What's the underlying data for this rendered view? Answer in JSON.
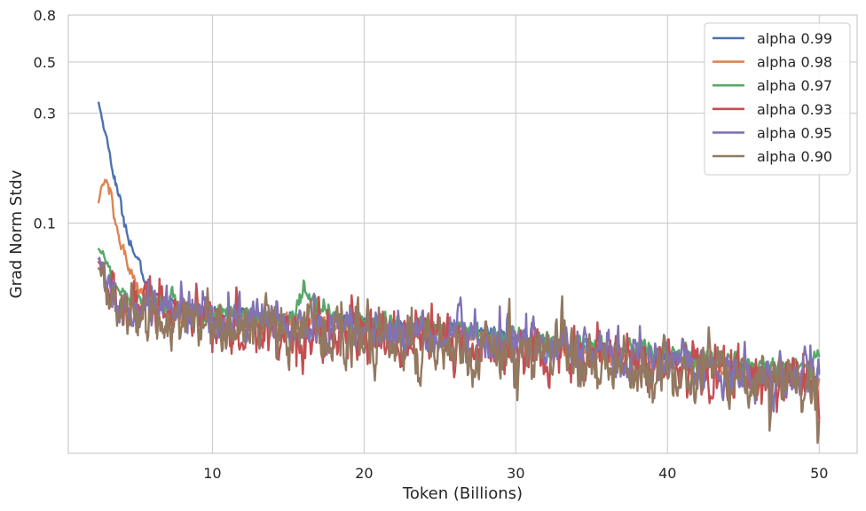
{
  "chart_data": {
    "type": "line",
    "xlabel": "Token (Billions)",
    "ylabel": "Grad Norm Stdv",
    "x_range": [
      0.5,
      52.5
    ],
    "y_range": [
      0.01,
      0.8
    ],
    "y_scale": "log",
    "x_ticks": [
      10,
      20,
      30,
      40,
      50
    ],
    "x_tick_labels": [
      "10",
      "20",
      "30",
      "40",
      "50"
    ],
    "y_ticks": [
      0.1,
      0.3,
      0.5,
      0.8
    ],
    "y_tick_labels": [
      "0.1",
      "0.3",
      "0.5",
      "0.8"
    ],
    "grid": true,
    "legend_position": "top-right",
    "series_colors": [
      "#4c72b0",
      "#dd8452",
      "#55a868",
      "#c44e52",
      "#8172b3",
      "#937860"
    ],
    "series": [
      {
        "name": "alpha 0.99",
        "x": [
          2.5,
          3,
          3.5,
          4,
          4.5,
          5,
          5.5,
          6,
          7,
          8,
          9,
          10,
          12,
          14,
          16,
          18,
          20,
          22,
          24,
          26,
          28,
          30,
          32,
          34,
          36,
          38,
          40,
          42,
          44,
          46,
          48,
          50
        ],
        "values": [
          0.333,
          0.236,
          0.163,
          0.114,
          0.087,
          0.069,
          0.058,
          0.051,
          0.046,
          0.044,
          0.042,
          0.041,
          0.04,
          0.039,
          0.038,
          0.038,
          0.037,
          0.036,
          0.035,
          0.034,
          0.033,
          0.032,
          0.031,
          0.029,
          0.028,
          0.027,
          0.026,
          0.025,
          0.024,
          0.023,
          0.022,
          0.022
        ]
      },
      {
        "name": "alpha 0.98",
        "x": [
          2.5,
          2.7,
          3,
          3.3,
          3.6,
          4,
          4.5,
          5,
          5.5,
          6,
          7,
          8,
          9,
          10,
          12,
          14,
          16,
          18,
          20,
          22,
          24,
          26,
          28,
          30,
          32,
          34,
          36,
          38,
          40,
          42,
          44,
          46,
          48,
          50
        ],
        "values": [
          0.122,
          0.148,
          0.151,
          0.129,
          0.101,
          0.079,
          0.064,
          0.055,
          0.05,
          0.047,
          0.044,
          0.042,
          0.041,
          0.04,
          0.039,
          0.038,
          0.037,
          0.036,
          0.035,
          0.034,
          0.033,
          0.032,
          0.031,
          0.03,
          0.029,
          0.028,
          0.027,
          0.026,
          0.025,
          0.024,
          0.023,
          0.022,
          0.021,
          0.021
        ]
      },
      {
        "name": "alpha 0.97",
        "x": [
          2.5,
          2.8,
          3.2,
          3.6,
          4,
          4.5,
          5,
          5.5,
          6,
          7,
          8,
          9,
          10,
          12,
          14,
          15.5,
          16,
          17,
          18,
          20,
          22,
          24,
          26,
          28,
          30,
          32,
          34,
          36,
          38,
          40,
          42,
          44,
          46,
          48,
          49.5,
          50
        ],
        "values": [
          0.078,
          0.074,
          0.061,
          0.054,
          0.051,
          0.049,
          0.048,
          0.047,
          0.046,
          0.044,
          0.042,
          0.041,
          0.04,
          0.039,
          0.038,
          0.04,
          0.052,
          0.043,
          0.039,
          0.037,
          0.036,
          0.035,
          0.034,
          0.033,
          0.032,
          0.031,
          0.03,
          0.029,
          0.028,
          0.027,
          0.026,
          0.025,
          0.024,
          0.023,
          0.024,
          0.026
        ]
      },
      {
        "name": "alpha 0.93",
        "x": [
          2.5,
          3,
          3.5,
          4,
          5,
          6,
          7,
          8,
          9,
          10,
          12,
          14,
          16,
          18,
          20,
          22,
          24,
          26,
          28,
          30,
          32,
          34,
          36,
          38,
          40,
          42,
          44,
          46,
          48,
          50
        ],
        "values": [
          0.067,
          0.052,
          0.047,
          0.044,
          0.042,
          0.04,
          0.039,
          0.038,
          0.037,
          0.036,
          0.035,
          0.034,
          0.033,
          0.033,
          0.032,
          0.031,
          0.031,
          0.03,
          0.029,
          0.028,
          0.028,
          0.027,
          0.026,
          0.025,
          0.024,
          0.023,
          0.022,
          0.021,
          0.021,
          0.02
        ]
      },
      {
        "name": "alpha 0.95",
        "x": [
          2.5,
          3,
          3.5,
          4,
          5,
          6,
          7,
          8,
          9,
          10,
          12,
          14,
          16,
          18,
          20,
          22,
          24,
          26,
          28,
          30,
          32,
          34,
          36,
          38,
          40,
          42,
          44,
          46,
          48,
          50
        ],
        "values": [
          0.071,
          0.058,
          0.05,
          0.047,
          0.044,
          0.043,
          0.042,
          0.041,
          0.04,
          0.039,
          0.038,
          0.037,
          0.036,
          0.035,
          0.034,
          0.033,
          0.033,
          0.032,
          0.031,
          0.03,
          0.029,
          0.028,
          0.027,
          0.026,
          0.025,
          0.024,
          0.023,
          0.022,
          0.021,
          0.021
        ]
      },
      {
        "name": "alpha 0.90",
        "x": [
          2.5,
          3,
          3.5,
          4,
          5,
          6,
          7,
          8,
          9,
          10,
          12,
          14,
          16,
          18,
          20,
          22,
          24,
          26,
          28,
          30,
          32,
          34,
          36,
          38,
          40,
          42,
          44,
          46,
          48,
          50
        ],
        "values": [
          0.064,
          0.049,
          0.045,
          0.043,
          0.041,
          0.039,
          0.038,
          0.037,
          0.036,
          0.035,
          0.034,
          0.034,
          0.033,
          0.032,
          0.031,
          0.031,
          0.03,
          0.029,
          0.029,
          0.028,
          0.027,
          0.026,
          0.025,
          0.024,
          0.023,
          0.022,
          0.022,
          0.021,
          0.02,
          0.02
        ]
      }
    ]
  }
}
